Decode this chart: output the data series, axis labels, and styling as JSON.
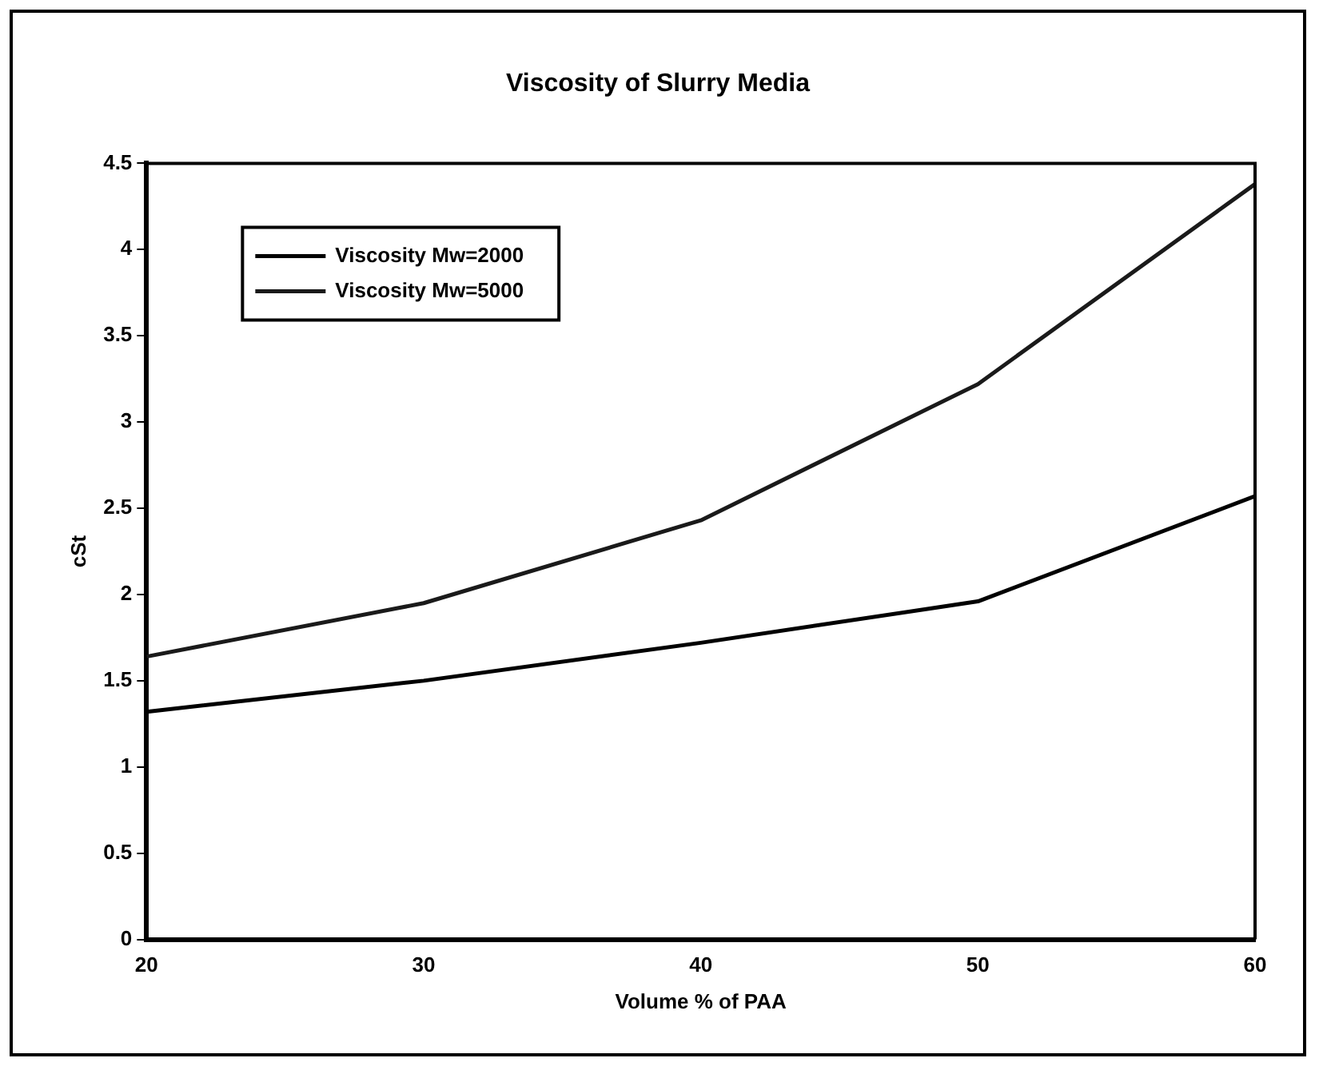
{
  "chart_data": {
    "type": "line",
    "title": "Viscosity of Slurry Media",
    "xlabel": "Volume % of PAA",
    "ylabel": "cSt",
    "x": [
      20,
      30,
      40,
      50,
      60
    ],
    "series": [
      {
        "name": "Viscosity Mw=2000",
        "color": "#000000",
        "values": [
          1.32,
          1.5,
          1.72,
          1.96,
          2.57
        ]
      },
      {
        "name": "Viscosity Mw=5000",
        "color": "#1a1a1a",
        "values": [
          1.64,
          1.95,
          2.43,
          3.22,
          4.38
        ]
      }
    ],
    "xlim": [
      20,
      60
    ],
    "xticks": [
      20,
      30,
      40,
      50,
      60
    ],
    "ylim": [
      0,
      4.5
    ],
    "yticks": [
      0,
      0.5,
      1,
      1.5,
      2,
      2.5,
      3,
      3.5,
      4,
      4.5
    ],
    "grid": false,
    "legend": "top left",
    "marker": "none",
    "line_style": "solid"
  }
}
